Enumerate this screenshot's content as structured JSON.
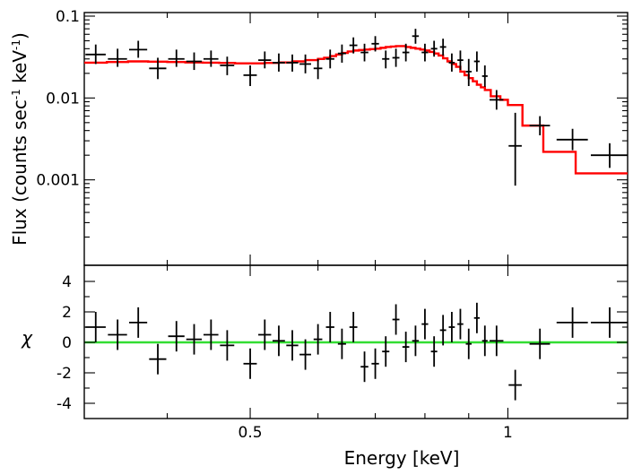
{
  "chart_data": [
    {
      "type": "scatter",
      "panel": "top",
      "title": "",
      "xlabel": "",
      "ylabel": "Flux (counts sec",
      "ylabel_sup1": "-1",
      "ylabel_mid": " keV",
      "ylabel_sup2": "-1",
      "ylabel_end": ")",
      "xscale": "log",
      "yscale": "log",
      "xlim": [
        0.32,
        1.38
      ],
      "ylim": [
        0.0001,
        0.1
      ],
      "yticks": [
        0.001,
        0.01,
        0.1
      ],
      "ytick_labels": [
        "0.001",
        "0.01",
        "0.1"
      ],
      "series": [
        {
          "name": "data",
          "color": "#000000",
          "points": [
            {
              "x": 0.33,
              "xerr": 0.009,
              "y": 0.034,
              "ylo": 0.026,
              "yhi": 0.045
            },
            {
              "x": 0.35,
              "xerr": 0.009,
              "y": 0.03,
              "ylo": 0.024,
              "yhi": 0.04
            },
            {
              "x": 0.37,
              "xerr": 0.009,
              "y": 0.039,
              "ylo": 0.031,
              "yhi": 0.05
            },
            {
              "x": 0.39,
              "xerr": 0.009,
              "y": 0.023,
              "ylo": 0.017,
              "yhi": 0.031
            },
            {
              "x": 0.41,
              "xerr": 0.009,
              "y": 0.03,
              "ylo": 0.024,
              "yhi": 0.039
            },
            {
              "x": 0.43,
              "xerr": 0.009,
              "y": 0.028,
              "ylo": 0.022,
              "yhi": 0.036
            },
            {
              "x": 0.45,
              "xerr": 0.009,
              "y": 0.03,
              "ylo": 0.024,
              "yhi": 0.038
            },
            {
              "x": 0.47,
              "xerr": 0.009,
              "y": 0.025,
              "ylo": 0.019,
              "yhi": 0.032
            },
            {
              "x": 0.5,
              "xerr": 0.009,
              "y": 0.019,
              "ylo": 0.014,
              "yhi": 0.025
            },
            {
              "x": 0.52,
              "xerr": 0.009,
              "y": 0.029,
              "ylo": 0.023,
              "yhi": 0.037
            },
            {
              "x": 0.54,
              "xerr": 0.009,
              "y": 0.027,
              "ylo": 0.021,
              "yhi": 0.035
            },
            {
              "x": 0.56,
              "xerr": 0.009,
              "y": 0.027,
              "ylo": 0.021,
              "yhi": 0.034
            },
            {
              "x": 0.58,
              "xerr": 0.009,
              "y": 0.026,
              "ylo": 0.02,
              "yhi": 0.034
            },
            {
              "x": 0.6,
              "xerr": 0.007,
              "y": 0.023,
              "ylo": 0.017,
              "yhi": 0.03
            },
            {
              "x": 0.62,
              "xerr": 0.007,
              "y": 0.03,
              "ylo": 0.023,
              "yhi": 0.039
            },
            {
              "x": 0.64,
              "xerr": 0.007,
              "y": 0.035,
              "ylo": 0.027,
              "yhi": 0.045
            },
            {
              "x": 0.66,
              "xerr": 0.007,
              "y": 0.044,
              "ylo": 0.035,
              "yhi": 0.055
            },
            {
              "x": 0.68,
              "xerr": 0.007,
              "y": 0.036,
              "ylo": 0.028,
              "yhi": 0.046
            },
            {
              "x": 0.7,
              "xerr": 0.007,
              "y": 0.046,
              "ylo": 0.037,
              "yhi": 0.057
            },
            {
              "x": 0.72,
              "xerr": 0.007,
              "y": 0.03,
              "ylo": 0.023,
              "yhi": 0.038
            },
            {
              "x": 0.74,
              "xerr": 0.007,
              "y": 0.031,
              "ylo": 0.024,
              "yhi": 0.04
            },
            {
              "x": 0.76,
              "xerr": 0.007,
              "y": 0.036,
              "ylo": 0.028,
              "yhi": 0.046
            },
            {
              "x": 0.78,
              "xerr": 0.007,
              "y": 0.057,
              "ylo": 0.046,
              "yhi": 0.07
            },
            {
              "x": 0.8,
              "xerr": 0.007,
              "y": 0.036,
              "ylo": 0.028,
              "yhi": 0.046
            },
            {
              "x": 0.82,
              "xerr": 0.007,
              "y": 0.04,
              "ylo": 0.032,
              "yhi": 0.05
            },
            {
              "x": 0.84,
              "xerr": 0.007,
              "y": 0.042,
              "ylo": 0.033,
              "yhi": 0.053
            },
            {
              "x": 0.86,
              "xerr": 0.007,
              "y": 0.027,
              "ylo": 0.021,
              "yhi": 0.035
            },
            {
              "x": 0.88,
              "xerr": 0.007,
              "y": 0.029,
              "ylo": 0.022,
              "yhi": 0.038
            },
            {
              "x": 0.9,
              "xerr": 0.007,
              "y": 0.021,
              "ylo": 0.014,
              "yhi": 0.03
            },
            {
              "x": 0.92,
              "xerr": 0.007,
              "y": 0.028,
              "ylo": 0.021,
              "yhi": 0.037
            },
            {
              "x": 0.94,
              "xerr": 0.007,
              "y": 0.0185,
              "ylo": 0.0137,
              "yhi": 0.025
            },
            {
              "x": 0.97,
              "xerr": 0.018,
              "y": 0.0095,
              "ylo": 0.0072,
              "yhi": 0.0125
            },
            {
              "x": 1.02,
              "xerr": 0.018,
              "y": 0.0026,
              "ylo": 0.00085,
              "yhi": 0.0066
            },
            {
              "x": 1.09,
              "xerr": 0.03,
              "y": 0.0046,
              "ylo": 0.0035,
              "yhi": 0.006
            },
            {
              "x": 1.19,
              "xerr": 0.05,
              "y": 0.0031,
              "ylo": 0.0023,
              "yhi": 0.0042
            },
            {
              "x": 1.315,
              "xerr": 0.065,
              "y": 0.002,
              "ylo": 0.0014,
              "yhi": 0.0028
            }
          ]
        },
        {
          "name": "model",
          "type": "step",
          "color": "#ff0000",
          "edges": [
            0.32,
            0.34,
            0.36,
            0.38,
            0.4,
            0.42,
            0.44,
            0.46,
            0.48,
            0.5,
            0.52,
            0.54,
            0.56,
            0.58,
            0.6,
            0.61,
            0.62,
            0.63,
            0.64,
            0.65,
            0.66,
            0.67,
            0.68,
            0.69,
            0.7,
            0.71,
            0.72,
            0.73,
            0.74,
            0.75,
            0.76,
            0.77,
            0.78,
            0.79,
            0.8,
            0.81,
            0.82,
            0.83,
            0.84,
            0.85,
            0.86,
            0.87,
            0.88,
            0.89,
            0.9,
            0.91,
            0.92,
            0.93,
            0.94,
            0.955,
            0.98,
            1.0,
            1.04,
            1.1,
            1.2,
            1.38
          ],
          "values": [
            0.027,
            0.0275,
            0.028,
            0.0278,
            0.0275,
            0.0272,
            0.027,
            0.0268,
            0.0265,
            0.0265,
            0.0268,
            0.0272,
            0.028,
            0.029,
            0.03,
            0.031,
            0.0325,
            0.034,
            0.0355,
            0.037,
            0.038,
            0.0385,
            0.039,
            0.0395,
            0.04,
            0.041,
            0.042,
            0.0425,
            0.043,
            0.043,
            0.042,
            0.041,
            0.04,
            0.039,
            0.038,
            0.0365,
            0.035,
            0.033,
            0.0305,
            0.028,
            0.026,
            0.024,
            0.021,
            0.019,
            0.0175,
            0.016,
            0.0145,
            0.0135,
            0.0125,
            0.0105,
            0.0095,
            0.0082,
            0.0046,
            0.0022,
            0.0012
          ]
        }
      ]
    },
    {
      "type": "scatter",
      "panel": "bottom",
      "title": "",
      "xlabel": "Energy [keV]",
      "ylabel": "χ",
      "xscale": "log",
      "yscale": "linear",
      "xlim": [
        0.32,
        1.38
      ],
      "ylim": [
        -5,
        5
      ],
      "xticks": [
        0.5,
        1
      ],
      "xtick_labels": [
        "0.5",
        "1"
      ],
      "yticks": [
        -4,
        -2,
        0,
        2,
        4
      ],
      "ytick_labels": [
        "-4",
        "-2",
        "0",
        "2",
        "4"
      ],
      "reference_line": {
        "y": 0,
        "color": "#33dd33"
      },
      "series": [
        {
          "name": "residuals",
          "color": "#000000",
          "points": [
            {
              "x": 0.33,
              "xerr": 0.009,
              "y": 1.0,
              "err": 1
            },
            {
              "x": 0.35,
              "xerr": 0.009,
              "y": 0.5,
              "err": 1
            },
            {
              "x": 0.37,
              "xerr": 0.009,
              "y": 1.3,
              "err": 1
            },
            {
              "x": 0.39,
              "xerr": 0.009,
              "y": -1.1,
              "err": 1
            },
            {
              "x": 0.41,
              "xerr": 0.009,
              "y": 0.4,
              "err": 1
            },
            {
              "x": 0.43,
              "xerr": 0.009,
              "y": 0.2,
              "err": 1
            },
            {
              "x": 0.45,
              "xerr": 0.009,
              "y": 0.5,
              "err": 1
            },
            {
              "x": 0.47,
              "xerr": 0.009,
              "y": -0.2,
              "err": 1
            },
            {
              "x": 0.5,
              "xerr": 0.009,
              "y": -1.4,
              "err": 1
            },
            {
              "x": 0.52,
              "xerr": 0.009,
              "y": 0.5,
              "err": 1
            },
            {
              "x": 0.54,
              "xerr": 0.009,
              "y": 0.1,
              "err": 1
            },
            {
              "x": 0.56,
              "xerr": 0.009,
              "y": -0.2,
              "err": 1
            },
            {
              "x": 0.58,
              "xerr": 0.009,
              "y": -0.8,
              "err": 1
            },
            {
              "x": 0.6,
              "xerr": 0.007,
              "y": 0.2,
              "err": 1
            },
            {
              "x": 0.62,
              "xerr": 0.007,
              "y": 1.0,
              "err": 1
            },
            {
              "x": 0.64,
              "xerr": 0.007,
              "y": -0.1,
              "err": 1
            },
            {
              "x": 0.66,
              "xerr": 0.007,
              "y": 1.0,
              "err": 1
            },
            {
              "x": 0.68,
              "xerr": 0.007,
              "y": -1.6,
              "err": 1
            },
            {
              "x": 0.7,
              "xerr": 0.007,
              "y": -1.4,
              "err": 1
            },
            {
              "x": 0.72,
              "xerr": 0.007,
              "y": -0.6,
              "err": 1
            },
            {
              "x": 0.74,
              "xerr": 0.007,
              "y": 1.5,
              "err": 1
            },
            {
              "x": 0.76,
              "xerr": 0.007,
              "y": -0.3,
              "err": 1
            },
            {
              "x": 0.78,
              "xerr": 0.007,
              "y": 0.1,
              "err": 1
            },
            {
              "x": 0.8,
              "xerr": 0.007,
              "y": 1.2,
              "err": 1
            },
            {
              "x": 0.82,
              "xerr": 0.007,
              "y": -0.6,
              "err": 1
            },
            {
              "x": 0.84,
              "xerr": 0.007,
              "y": 0.8,
              "err": 1
            },
            {
              "x": 0.86,
              "xerr": 0.007,
              "y": 1.0,
              "err": 1
            },
            {
              "x": 0.88,
              "xerr": 0.007,
              "y": 1.2,
              "err": 1
            },
            {
              "x": 0.9,
              "xerr": 0.007,
              "y": -0.1,
              "err": 1
            },
            {
              "x": 0.92,
              "xerr": 0.007,
              "y": 1.6,
              "err": 1
            },
            {
              "x": 0.94,
              "xerr": 0.007,
              "y": 0.1,
              "err": 1
            },
            {
              "x": 0.97,
              "xerr": 0.018,
              "y": 0.1,
              "err": 1
            },
            {
              "x": 1.02,
              "xerr": 0.018,
              "y": -2.8,
              "err": 1
            },
            {
              "x": 1.09,
              "xerr": 0.03,
              "y": -0.1,
              "err": 1
            },
            {
              "x": 1.19,
              "xerr": 0.05,
              "y": 1.3,
              "err": 1
            },
            {
              "x": 1.315,
              "xerr": 0.065,
              "y": 1.3,
              "err": 1
            }
          ]
        }
      ]
    }
  ]
}
